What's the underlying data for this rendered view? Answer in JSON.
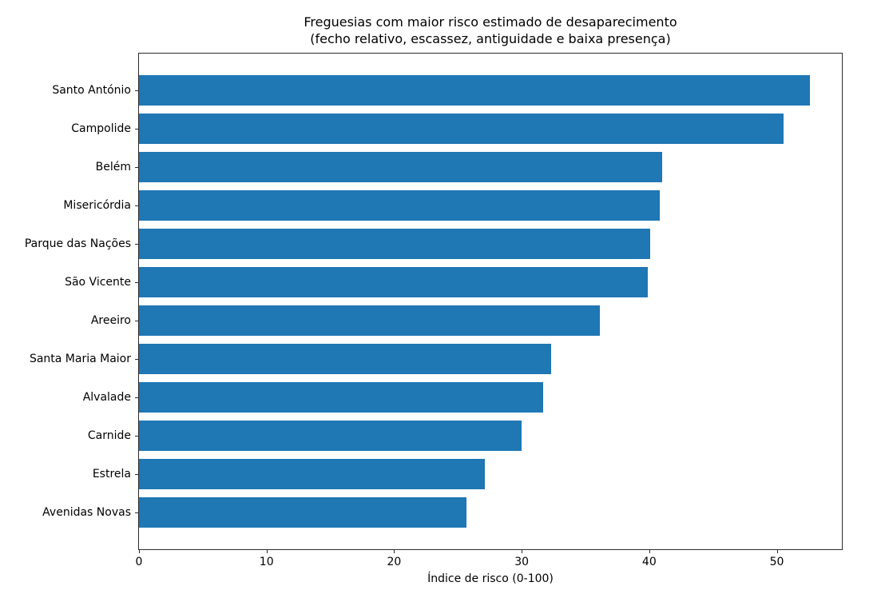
{
  "chart_data": {
    "type": "bar",
    "orientation": "horizontal",
    "title": "Freguesias com maior risco estimado de desaparecimento",
    "subtitle": "(fecho relativo, escassez, antiguidade e baixa presença)",
    "xlabel": "Índice de risco (0-100)",
    "ylabel": "",
    "categories": [
      "Santo António",
      "Campolide",
      "Belém",
      "Misericórdia",
      "Parque das Nações",
      "São Vicente",
      "Areeiro",
      "Santa Maria Maior",
      "Alvalade",
      "Carnide",
      "Estrela",
      "Avenidas Novas"
    ],
    "values": [
      52.6,
      50.5,
      41.0,
      40.8,
      40.1,
      39.9,
      36.1,
      32.3,
      31.7,
      30.0,
      27.1,
      25.7
    ],
    "xticks": [
      0,
      10,
      20,
      30,
      40,
      50
    ],
    "xlim": [
      0,
      55.1
    ],
    "bar_color": "#1f77b4",
    "axis_color": "#2b2b2b",
    "text_color": "#000000",
    "background_color": "#ffffff",
    "grid": false,
    "legend_position": "none"
  }
}
